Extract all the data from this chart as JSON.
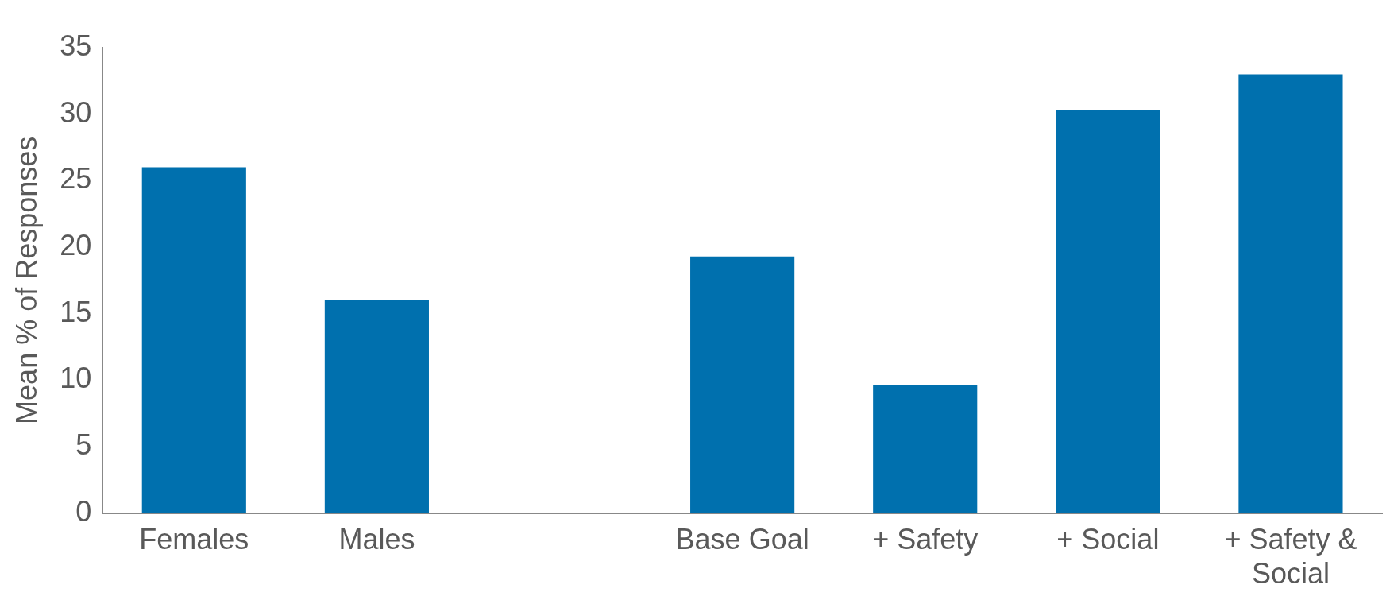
{
  "chart_data": {
    "type": "bar",
    "ylabel": "Mean % of Responses",
    "categories": [
      "Females",
      "Males",
      null,
      "Base Goal",
      "+ Safety",
      "+ Social",
      "+ Safety & Social"
    ],
    "values": [
      26,
      16,
      null,
      19.3,
      9.6,
      30.3,
      33
    ],
    "color": "#0070ae",
    "ylim": [
      0,
      35
    ],
    "yticks": [
      0,
      5,
      10,
      15,
      20,
      25,
      30,
      35
    ],
    "grid": false,
    "legend": false
  }
}
